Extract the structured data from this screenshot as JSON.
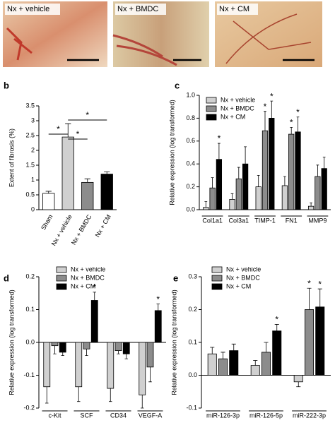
{
  "image_labels": [
    "Nx + vehicle",
    "Nx + BMDC",
    "Nx + CM"
  ],
  "chart_data": [
    {
      "type": "bar",
      "panel": "b",
      "ylabel": "Extent of fibrosis (%)",
      "categories": [
        "Sham",
        "Nx + vehicle",
        "Nx + BMDC",
        "Nx + CM"
      ],
      "values": [
        0.55,
        2.45,
        0.92,
        1.2
      ],
      "errors": [
        0.07,
        0.45,
        0.12,
        0.08
      ],
      "colors": [
        "#ffffff",
        "#d0d0d0",
        "#8c8c8c",
        "#000000"
      ],
      "ylim": [
        0,
        3.5
      ],
      "yticks": [
        0,
        0.5,
        1,
        1.5,
        2,
        2.5,
        3,
        3.5
      ],
      "significance_labels": [
        "*",
        "*",
        "*"
      ]
    },
    {
      "type": "bar",
      "panel": "c",
      "ylabel": "Relative expression (log transformed)",
      "categories": [
        "Col1a1",
        "Col3a1",
        "TIMP-1",
        "FN1",
        "MMP9"
      ],
      "series": [
        {
          "name": "Nx + vehicle",
          "color": "#d0d0d0",
          "values": [
            0.02,
            0.09,
            0.2,
            0.21,
            0.03
          ],
          "errors": [
            0.05,
            0.05,
            0.1,
            0.08,
            0.03
          ],
          "significance": [
            null,
            null,
            null,
            null,
            null
          ]
        },
        {
          "name": "Nx + BMDC",
          "color": "#8c8c8c",
          "values": [
            0.19,
            0.27,
            0.69,
            0.66,
            0.29
          ],
          "errors": [
            0.09,
            0.1,
            0.17,
            0.06,
            0.1
          ],
          "significance": [
            null,
            null,
            "*",
            "*",
            null
          ]
        },
        {
          "name": "Nx + CM",
          "color": "#000000",
          "values": [
            0.44,
            0.4,
            0.8,
            0.68,
            0.36
          ],
          "errors": [
            0.14,
            0.15,
            0.15,
            0.13,
            0.1
          ],
          "significance": [
            "*",
            null,
            "*",
            "*",
            null
          ]
        }
      ],
      "ylim": [
        0,
        1
      ],
      "yticks": [
        {
          "value": 0,
          "label": "0.0"
        },
        0.2,
        0.4,
        0.6,
        0.8,
        {
          "value": 1,
          "label": "1.0"
        }
      ]
    },
    {
      "type": "bar",
      "panel": "d",
      "ylabel": "Relative expression (log transformed)",
      "categories": [
        "c-Kit",
        "SCF",
        "CD34",
        "VEGF-A"
      ],
      "series": [
        {
          "name": "Nx + vehicle",
          "color": "#d0d0d0",
          "values": [
            -0.135,
            -0.135,
            -0.14,
            -0.16
          ],
          "errors": [
            0.05,
            0.045,
            0.04,
            0.04
          ],
          "significance": [
            null,
            null,
            null,
            null
          ]
        },
        {
          "name": "Nx + BMDC",
          "color": "#8c8c8c",
          "values": [
            -0.01,
            -0.02,
            -0.025,
            -0.075
          ],
          "errors": [
            0.025,
            0.02,
            0.01,
            0.045
          ],
          "significance": [
            null,
            null,
            null,
            null
          ]
        },
        {
          "name": "Nx + CM",
          "color": "#000000",
          "values": [
            -0.03,
            0.128,
            -0.035,
            0.097
          ],
          "errors": [
            0.01,
            0.025,
            0.015,
            0.02
          ],
          "significance": [
            null,
            "*",
            null,
            "*"
          ]
        }
      ],
      "ylim": [
        -0.2,
        0.2
      ],
      "yticks": [
        -0.2,
        -0.1,
        {
          "value": 0,
          "label": "0.0"
        },
        0.1,
        0.2
      ]
    },
    {
      "type": "bar",
      "panel": "e",
      "ylabel": "Relative expression (log transformed)",
      "categories": [
        "miR-126-3p",
        "miR-126-5p",
        "miR-222-3p"
      ],
      "series": [
        {
          "name": "Nx + vehicle",
          "color": "#d0d0d0",
          "values": [
            0.065,
            0.03,
            -0.02
          ],
          "errors": [
            0.02,
            0.015,
            0.015
          ],
          "significance": [
            null,
            null,
            null
          ]
        },
        {
          "name": "Nx + BMDC",
          "color": "#8c8c8c",
          "values": [
            0.05,
            0.07,
            0.2
          ],
          "errors": [
            0.02,
            0.03,
            0.065
          ],
          "significance": [
            null,
            null,
            "*"
          ]
        },
        {
          "name": "Nx + CM",
          "color": "#000000",
          "values": [
            0.075,
            0.135,
            0.208
          ],
          "errors": [
            0.02,
            0.02,
            0.055
          ],
          "significance": [
            null,
            "*",
            "*"
          ]
        }
      ],
      "ylim": [
        -0.1,
        0.3
      ],
      "yticks": [
        -0.1,
        {
          "value": 0,
          "label": "0.0"
        },
        0.1,
        0.2,
        0.3
      ]
    }
  ]
}
